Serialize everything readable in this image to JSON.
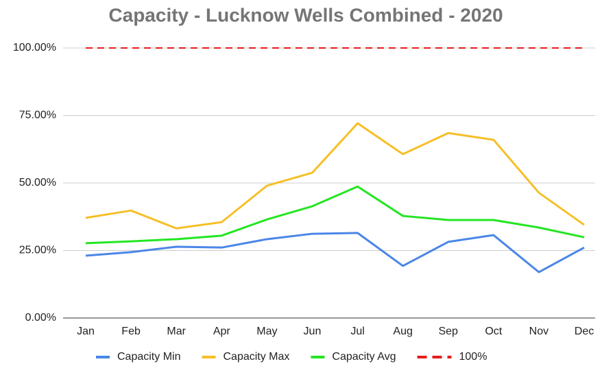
{
  "chart_data": {
    "type": "line",
    "title": "Capacity - Lucknow Wells Combined - 2020",
    "categories": [
      "Jan",
      "Feb",
      "Mar",
      "Apr",
      "May",
      "Jun",
      "Jul",
      "Aug",
      "Sep",
      "Oct",
      "Nov",
      "Dec"
    ],
    "series": [
      {
        "name": "Capacity Min",
        "color": "#4a86e8",
        "values": [
          23.1,
          24.4,
          26.4,
          26.1,
          29.2,
          31.2,
          31.5,
          19.3,
          28.2,
          30.7,
          17.0,
          26.1
        ]
      },
      {
        "name": "Capacity Max",
        "color": "#f6bf26",
        "values": [
          37.1,
          39.8,
          33.2,
          35.5,
          49.0,
          53.8,
          72.1,
          60.7,
          68.5,
          66.0,
          46.4,
          34.5
        ]
      },
      {
        "name": "Capacity Avg",
        "color": "#22e622",
        "values": [
          27.7,
          28.4,
          29.2,
          30.5,
          36.5,
          41.4,
          48.7,
          37.8,
          36.3,
          36.3,
          33.5,
          29.9
        ]
      },
      {
        "name": "100%",
        "color": "#e61c1c",
        "dashed": true,
        "values": [
          100,
          100,
          100,
          100,
          100,
          100,
          100,
          100,
          100,
          100,
          100,
          100
        ]
      }
    ],
    "ylim": [
      0,
      100
    ],
    "yticks": [
      {
        "value": 0,
        "label": "0.00%"
      },
      {
        "value": 25,
        "label": "25.00%"
      },
      {
        "value": 50,
        "label": "50.00%"
      },
      {
        "value": 75,
        "label": "75.00%"
      },
      {
        "value": 100,
        "label": "100.00%"
      }
    ],
    "grid": true,
    "legend": "bottom"
  }
}
